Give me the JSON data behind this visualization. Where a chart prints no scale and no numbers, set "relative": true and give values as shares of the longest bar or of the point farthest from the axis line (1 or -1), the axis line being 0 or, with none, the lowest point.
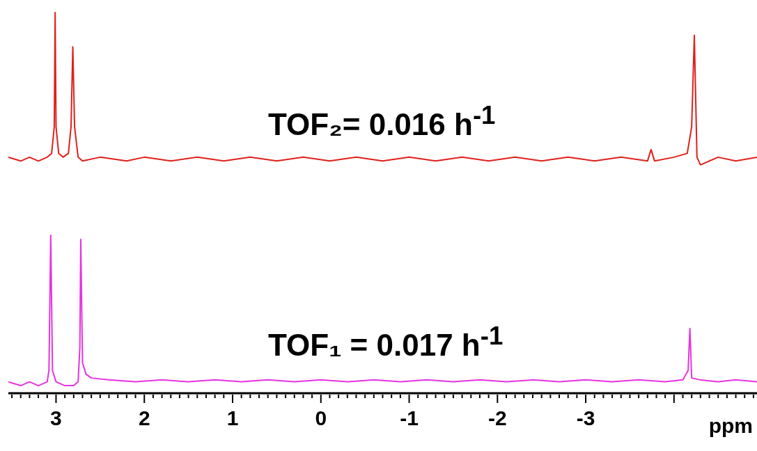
{
  "chart_data": {
    "type": "line",
    "relative": true,
    "xlim": [
      3.54,
      -4.94
    ],
    "xlabel": "ppm",
    "annotations": [
      "TOF₂= 0.016 h$^{-1}$",
      "TOF₁ = 0.017 h$^{-1}$"
    ],
    "xticks": [
      {
        "value": 3.5,
        "label": null
      },
      {
        "value": 3.4,
        "label": null
      },
      {
        "value": 3.3,
        "label": null
      },
      {
        "value": 3.2,
        "label": null
      },
      {
        "value": 3.1,
        "label": null
      },
      3,
      {
        "value": 2.9,
        "label": null
      },
      {
        "value": 2.8,
        "label": null
      },
      {
        "value": 2.7,
        "label": null
      },
      {
        "value": 2.6,
        "label": null
      },
      {
        "value": 2.5,
        "label": null
      },
      {
        "value": 2.4,
        "label": null
      },
      {
        "value": 2.3,
        "label": null
      },
      {
        "value": 2.2,
        "label": null
      },
      {
        "value": 2.1,
        "label": null
      },
      2,
      {
        "value": 1.9,
        "label": null
      },
      {
        "value": 1.8,
        "label": null
      },
      {
        "value": 1.7,
        "label": null
      },
      {
        "value": 1.6,
        "label": null
      },
      {
        "value": 1.5,
        "label": null
      },
      {
        "value": 1.4,
        "label": null
      },
      {
        "value": 1.3,
        "label": null
      },
      {
        "value": 1.2,
        "label": null
      },
      {
        "value": 1.1,
        "label": null
      },
      1,
      {
        "value": 0.9,
        "label": null
      },
      {
        "value": 0.8,
        "label": null
      },
      {
        "value": 0.7,
        "label": null
      },
      {
        "value": 0.6,
        "label": null
      },
      {
        "value": 0.5,
        "label": null
      },
      {
        "value": 0.4,
        "label": null
      },
      {
        "value": 0.3,
        "label": null
      },
      {
        "value": 0.2,
        "label": null
      },
      {
        "value": 0.1,
        "label": null
      },
      0,
      {
        "value": -0.1,
        "label": null
      },
      {
        "value": -0.2,
        "label": null
      },
      {
        "value": -0.3,
        "label": null
      },
      {
        "value": -0.4,
        "label": null
      },
      {
        "value": -0.5,
        "label": null
      },
      {
        "value": -0.6,
        "label": null
      },
      {
        "value": -0.7,
        "label": null
      },
      {
        "value": -0.8,
        "label": null
      },
      {
        "value": -0.9,
        "label": null
      },
      -1,
      {
        "value": -1.1,
        "label": null
      },
      {
        "value": -1.2,
        "label": null
      },
      {
        "value": -1.3,
        "label": null
      },
      {
        "value": -1.4,
        "label": null
      },
      {
        "value": -1.5,
        "label": null
      },
      {
        "value": -1.6,
        "label": null
      },
      {
        "value": -1.7,
        "label": null
      },
      {
        "value": -1.8,
        "label": null
      },
      {
        "value": -1.9,
        "label": null
      },
      -2,
      {
        "value": -2.1,
        "label": null
      },
      {
        "value": -2.2,
        "label": null
      },
      {
        "value": -2.3,
        "label": null
      },
      {
        "value": -2.4,
        "label": null
      },
      {
        "value": -2.5,
        "label": null
      },
      {
        "value": -2.6,
        "label": null
      },
      {
        "value": -2.7,
        "label": null
      },
      {
        "value": -2.8,
        "label": null
      },
      {
        "value": -2.9,
        "label": null
      },
      -3,
      {
        "value": -3.1,
        "label": null
      },
      {
        "value": -3.2,
        "label": null
      },
      {
        "value": -3.3,
        "label": null
      },
      {
        "value": -3.4,
        "label": null
      },
      {
        "value": -3.5,
        "label": null
      },
      {
        "value": -3.6,
        "label": null
      },
      {
        "value": -3.7,
        "label": null
      },
      {
        "value": -3.8,
        "label": null
      },
      {
        "value": -3.9,
        "label": null
      },
      {
        "value": -4,
        "label": null
      },
      {
        "value": -4.1,
        "label": null
      },
      {
        "value": -4.2,
        "label": null
      },
      {
        "value": -4.3,
        "label": null
      },
      {
        "value": -4.4,
        "label": null
      },
      {
        "value": -4.5,
        "label": null
      },
      {
        "value": -4.6,
        "label": null
      },
      {
        "value": -4.7,
        "label": null
      },
      {
        "value": -4.8,
        "label": null
      },
      {
        "value": -4.9,
        "label": null
      }
    ],
    "series": [
      {
        "color": "#e0201b",
        "x": [
          3.54,
          3.4,
          3.3,
          3.2,
          3.1,
          3.05,
          3.02,
          3.01,
          3.0,
          2.97,
          2.92,
          2.86,
          2.83,
          2.81,
          2.79,
          2.75,
          2.7,
          2.5,
          2.2,
          2.0,
          1.7,
          1.4,
          1.1,
          0.8,
          0.5,
          0.2,
          -0.1,
          -0.4,
          -0.7,
          -1.0,
          -1.3,
          -1.6,
          -1.9,
          -2.2,
          -2.5,
          -2.8,
          -3.1,
          -3.4,
          -3.7,
          -3.74,
          -3.78,
          -4.0,
          -4.15,
          -4.2,
          -4.23,
          -4.26,
          -4.3,
          -4.5,
          -4.7,
          -4.94
        ],
        "values": [
          0.62,
          0.61,
          0.62,
          0.61,
          0.62,
          0.63,
          0.7,
          1,
          0.7,
          0.63,
          0.62,
          0.63,
          0.7,
          0.91,
          0.7,
          0.62,
          0.61,
          0.62,
          0.61,
          0.62,
          0.61,
          0.62,
          0.61,
          0.62,
          0.61,
          0.62,
          0.61,
          0.62,
          0.61,
          0.62,
          0.61,
          0.62,
          0.61,
          0.62,
          0.61,
          0.62,
          0.61,
          0.62,
          0.61,
          0.64,
          0.61,
          0.62,
          0.63,
          0.7,
          0.94,
          0.62,
          0.6,
          0.62,
          0.61,
          0.62
        ]
      },
      {
        "color": "#e633e0",
        "x": [
          3.54,
          3.4,
          3.3,
          3.2,
          3.1,
          3.08,
          3.06,
          3.04,
          3.0,
          2.9,
          2.8,
          2.75,
          2.73,
          2.72,
          2.7,
          2.66,
          2.6,
          2.4,
          2.1,
          1.8,
          1.5,
          1.2,
          0.9,
          0.6,
          0.3,
          0.0,
          -0.3,
          -0.6,
          -0.9,
          -1.2,
          -1.5,
          -1.8,
          -2.1,
          -2.4,
          -2.7,
          -3.0,
          -3.3,
          -3.6,
          -3.9,
          -4.1,
          -4.16,
          -4.18,
          -4.2,
          -4.3,
          -4.5,
          -4.7,
          -4.94
        ],
        "values": [
          0.03,
          0.02,
          0.03,
          0.02,
          0.03,
          0.06,
          0.415,
          0.06,
          0.03,
          0.02,
          0.02,
          0.03,
          0.12,
          0.404,
          0.08,
          0.05,
          0.04,
          0.035,
          0.03,
          0.035,
          0.03,
          0.035,
          0.03,
          0.035,
          0.03,
          0.035,
          0.03,
          0.035,
          0.03,
          0.035,
          0.03,
          0.035,
          0.03,
          0.035,
          0.03,
          0.035,
          0.03,
          0.035,
          0.03,
          0.035,
          0.06,
          0.17,
          0.04,
          0.035,
          0.03,
          0.035,
          0.03
        ]
      }
    ]
  }
}
